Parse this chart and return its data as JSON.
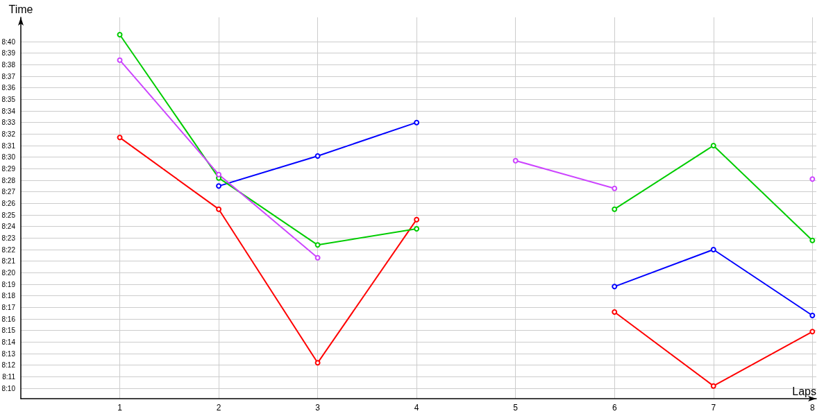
{
  "chart_data": {
    "type": "line",
    "xlabel": "Laps",
    "ylabel": "Time",
    "x": [
      1,
      2,
      3,
      4,
      5,
      6,
      7,
      8
    ],
    "xlim": [
      0,
      8.04
    ],
    "xticks": [
      1,
      2,
      3,
      4,
      5,
      6,
      7,
      8
    ],
    "ylim": [
      489.1,
      522.1
    ],
    "yticks": [
      {
        "value": 490,
        "label": "8:10"
      },
      {
        "value": 491,
        "label": "8:11"
      },
      {
        "value": 492,
        "label": "8:12"
      },
      {
        "value": 493,
        "label": "8:13"
      },
      {
        "value": 494,
        "label": "8:14"
      },
      {
        "value": 495,
        "label": "8:15"
      },
      {
        "value": 496,
        "label": "8:16"
      },
      {
        "value": 497,
        "label": "8:17"
      },
      {
        "value": 498,
        "label": "8:18"
      },
      {
        "value": 499,
        "label": "8:19"
      },
      {
        "value": 500,
        "label": "8:20"
      },
      {
        "value": 501,
        "label": "8:21"
      },
      {
        "value": 502,
        "label": "8:22"
      },
      {
        "value": 503,
        "label": "8:23"
      },
      {
        "value": 504,
        "label": "8:24"
      },
      {
        "value": 505,
        "label": "8:25"
      },
      {
        "value": 506,
        "label": "8:26"
      },
      {
        "value": 507,
        "label": "8:27"
      },
      {
        "value": 508,
        "label": "8:28"
      },
      {
        "value": 509,
        "label": "8:29"
      },
      {
        "value": 510,
        "label": "8:30"
      },
      {
        "value": 511,
        "label": "8:31"
      },
      {
        "value": 512,
        "label": "8:32"
      },
      {
        "value": 513,
        "label": "8:33"
      },
      {
        "value": 514,
        "label": "8:34"
      },
      {
        "value": 515,
        "label": "8:35"
      },
      {
        "value": 516,
        "label": "8:36"
      },
      {
        "value": 517,
        "label": "8:37"
      },
      {
        "value": 518,
        "label": "8:38"
      },
      {
        "value": 519,
        "label": "8:39"
      },
      {
        "value": 520,
        "label": "8:40"
      }
    ],
    "grid": true,
    "marker": "circle",
    "line_style": "solid",
    "series": [
      {
        "color": "#ff0000",
        "values": [
          511.7,
          505.5,
          492.2,
          504.6,
          null,
          496.6,
          490.2,
          494.9
        ]
      },
      {
        "color": "#0000ff",
        "values": [
          null,
          507.5,
          510.1,
          513.0,
          null,
          498.8,
          502.0,
          496.3
        ]
      },
      {
        "color": "#00cc00",
        "values": [
          520.6,
          508.2,
          502.4,
          503.8,
          null,
          505.5,
          511.0,
          502.8
        ]
      },
      {
        "color": "#cc44ff",
        "values": [
          518.4,
          508.5,
          501.3,
          null,
          509.7,
          507.3,
          null,
          508.1
        ]
      }
    ]
  }
}
